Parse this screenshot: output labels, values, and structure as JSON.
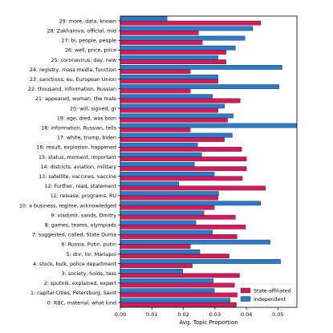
{
  "chart_data": {
    "type": "bar",
    "orientation": "horizontal",
    "title": "",
    "xlabel": "Avg. Topic Proportion",
    "ylabel": "",
    "xlim": [
      0,
      0.056
    ],
    "xticks": [
      "0.00",
      "0.01",
      "0.02",
      "0.03",
      "0.04",
      "0.05"
    ],
    "grid": false,
    "legend_position": "lower-right",
    "colors": {
      "State-affiliated": "#d6195b",
      "Independent": "#2b7bcb"
    },
    "categories": [
      "0: RBC, material, what kind",
      "1: capital Cities, Petersburg, Saint",
      "2: sputnik, explained, expert",
      "3: society, holds, tass",
      "4: stock, bulk, police department",
      "5: dnr, lnr, Mariupol",
      "6: Russia, Putin, putin",
      "7: suggested, called, State Duma",
      "8: games, teams, olympiads",
      "9: vladimir, sands, Dmitry",
      "10: a business, regime, acknowledged",
      "11: release, programs, RU",
      "12: Further, read, statement",
      "13: satellite, vaccines, vaccine",
      "14: districts, aviation, military",
      "15: status, moment, important",
      "16: result, explosion, happened",
      "17: white, trump, biden",
      "18: information, Russian, tells",
      "19: age, died, was born",
      "20: will, signed, gr",
      "21: appeared, woman, the male",
      "22: thousand, information, Russian",
      "23: sanctions, eu, European Union",
      "24: registry, mass media, function",
      "25: coronavirus, day, new",
      "26: well, price, price",
      "27: bi, people, people",
      "28: Zakharova, official, mid",
      "29: more, data, known"
    ],
    "series": [
      {
        "name": "State-affiliated",
        "values": [
          0.0368,
          0.0373,
          0.0362,
          0.0378,
          0.0228,
          0.0345,
          0.0222,
          0.037,
          0.0397,
          0.0365,
          0.0298,
          0.031,
          0.046,
          0.0387,
          0.04,
          0.04,
          0.0385,
          0.033,
          0.0222,
          0.034,
          0.031,
          0.038,
          0.0222,
          0.031,
          0.0222,
          0.0335,
          0.0335,
          0.026,
          0.0248,
          0.0445
        ]
      },
      {
        "name": "Independent",
        "values": [
          0.0348,
          0.0298,
          0.0295,
          0.0198,
          0.0508,
          0.0252,
          0.0475,
          0.0292,
          0.024,
          0.0265,
          0.0445,
          0.0312,
          0.0185,
          0.0298,
          0.0235,
          0.0258,
          0.0245,
          0.0355,
          0.0558,
          0.0358,
          0.033,
          0.0292,
          0.0503,
          0.031,
          0.0513,
          0.031,
          0.0365,
          0.0395,
          0.042,
          0.0148
        ]
      }
    ]
  }
}
